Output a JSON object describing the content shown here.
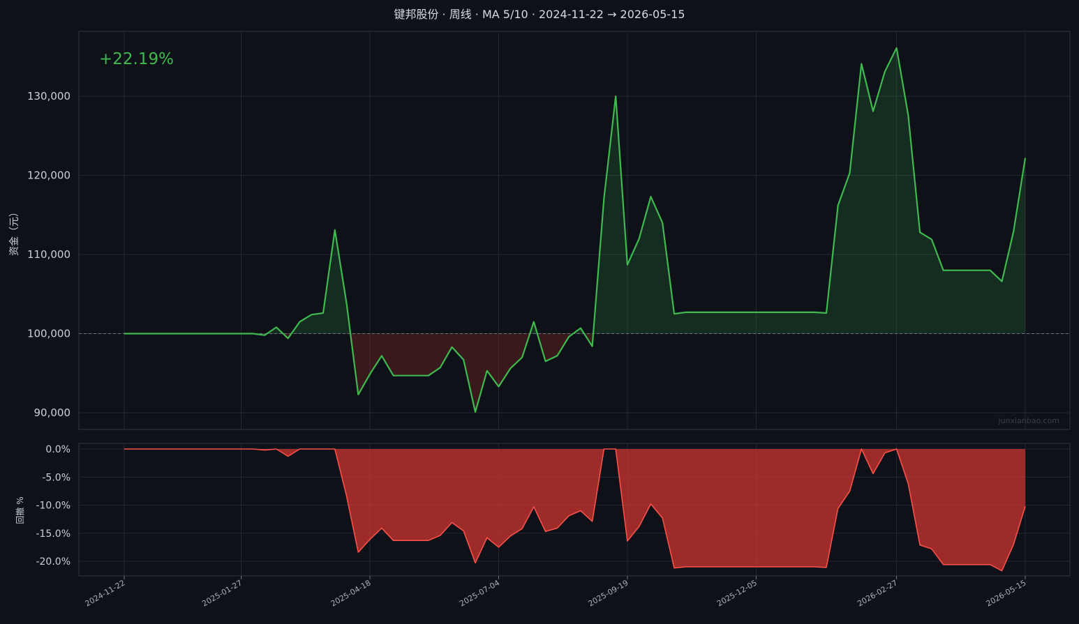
{
  "colors": {
    "background": "#0e1117",
    "panel_border": "#30363d",
    "grid": "#222831",
    "equity_line": "#3fb950",
    "gain_fill": "#3fb950",
    "loss_fill": "#da3633",
    "drawdown": "#f85149",
    "return_text": "#3fb950"
  },
  "chart_data": [
    {
      "type": "area",
      "title": "键邦股份 · 周线 · MA 5/10 · 2024-11-22 → 2026-05-15",
      "ylabel": "资金（元）",
      "baseline": 100000,
      "return_label": "+22.19%",
      "watermark": "junxianbao.com",
      "ylim": [
        88000,
        138000
      ],
      "yticks": [
        90000,
        100000,
        110000,
        120000,
        130000
      ],
      "ytick_labels": [
        "90,000",
        "100,000",
        "110,000",
        "120,000",
        "130,000"
      ],
      "xticks": [
        "2024-11-22",
        "2025-01-27",
        "2025-04-18",
        "2025-07-04",
        "2025-09-19",
        "2025-12-05",
        "2026-02-27",
        "2026-05-15"
      ],
      "grid": true,
      "series": [
        {
          "values": [
            100000,
            100000,
            100000,
            100000,
            100000,
            100000,
            100000,
            100000,
            100000,
            100000,
            100000,
            100000,
            99800,
            100800,
            99400,
            101500,
            102400,
            102600,
            113100,
            103800,
            92300,
            94900,
            97200,
            94700,
            94700,
            94700,
            94700,
            95700,
            98300,
            96700,
            90100,
            95300,
            93300,
            95600,
            97000,
            101500,
            96500,
            97200,
            99600,
            100700,
            98400,
            117100,
            130000,
            108700,
            112000,
            117300,
            114000,
            102500,
            102700,
            102700,
            102700,
            102700,
            102700,
            102700,
            102700,
            102700,
            102700,
            102700,
            102700,
            102700,
            102600,
            116200,
            120300,
            134100,
            128100,
            133100,
            136100,
            127600,
            112800,
            111900,
            108000,
            108000,
            108000,
            108000,
            108000,
            106600,
            112900,
            122200
          ]
        }
      ]
    },
    {
      "type": "area",
      "ylabel": "回撤 %",
      "ylim": [
        -22.5,
        1
      ],
      "yticks": [
        0,
        -5,
        -10,
        -15,
        -20
      ],
      "ytick_labels": [
        "0.0%",
        "-5.0%",
        "-10.0%",
        "-15.0%",
        "-20.0%"
      ],
      "grid": true,
      "series": [
        {
          "values": [
            0,
            0,
            0,
            0,
            0,
            0,
            0,
            0,
            0,
            0,
            0,
            0,
            -0.2,
            0,
            -1.3,
            0,
            0,
            0,
            0,
            -8.4,
            -18.4,
            -16.1,
            -14.1,
            -16.3,
            -16.3,
            -16.3,
            -16.3,
            -15.4,
            -13.1,
            -14.6,
            -20.3,
            -15.8,
            -17.5,
            -15.5,
            -14.2,
            -10.3,
            -14.7,
            -14.1,
            -11.9,
            -11.0,
            -12.9,
            0,
            0,
            -16.4,
            -13.8,
            -9.8,
            -12.3,
            -21.2,
            -21.0,
            -21.0,
            -21.0,
            -21.0,
            -21.0,
            -21.0,
            -21.0,
            -21.0,
            -21.0,
            -21.0,
            -21.0,
            -21.0,
            -21.1,
            -10.6,
            -7.5,
            0,
            -4.4,
            -0.7,
            0,
            -6.2,
            -17.1,
            -17.8,
            -20.6,
            -20.6,
            -20.6,
            -20.6,
            -20.6,
            -21.7,
            -17.0,
            -10.2
          ]
        }
      ]
    }
  ]
}
